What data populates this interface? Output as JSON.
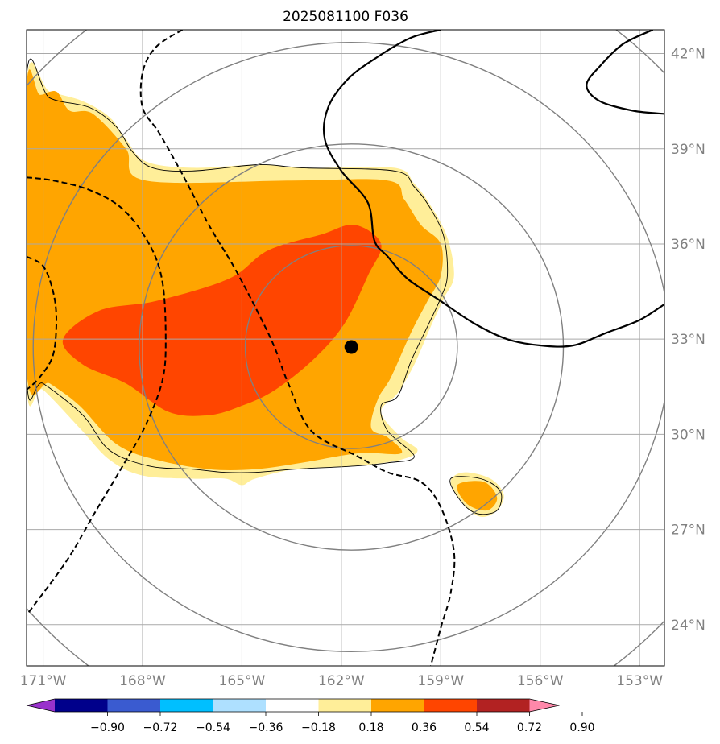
{
  "chart_data": {
    "type": "heatmap",
    "title": "2025081100 F036",
    "xlim": [
      -171.5,
      -152.25
    ],
    "ylim": [
      22.7,
      42.75
    ],
    "grid": true,
    "x_ticks": [
      -171,
      -168,
      -165,
      -162,
      -159,
      -156,
      -153
    ],
    "x_tick_labels": [
      "171°W",
      "168°W",
      "165°W",
      "162°W",
      "159°W",
      "156°W",
      "153°W"
    ],
    "y_ticks": [
      24,
      27,
      30,
      33,
      36,
      39,
      42
    ],
    "y_tick_labels": [
      "24°N",
      "27°N",
      "30°N",
      "33°N",
      "36°N",
      "39°N",
      "42°N"
    ],
    "center_point": {
      "lon": -161.7,
      "lat": 32.75
    },
    "range_rings_radius_deg": [
      3.2,
      6.4,
      9.6,
      12.8
    ],
    "fill_levels": [
      {
        "range": [
          0.18,
          0.36
        ],
        "color": "#FFEE99"
      },
      {
        "range": [
          0.36,
          0.54
        ],
        "color": "#FFA500"
      },
      {
        "range": [
          0.54,
          0.72
        ],
        "color": "#FF4500"
      }
    ],
    "regions": [
      {
        "level": 0.18,
        "color": "#FFEE99",
        "points": [
          [
            -171.5,
            41.1
          ],
          [
            -170.8,
            40.8
          ],
          [
            -169.8,
            40.5
          ],
          [
            -169.0,
            40.0
          ],
          [
            -168.5,
            39.3
          ],
          [
            -167.9,
            38.6
          ],
          [
            -166.5,
            38.4
          ],
          [
            -164.5,
            38.5
          ],
          [
            -163.0,
            38.4
          ],
          [
            -160.4,
            38.4
          ],
          [
            -159.8,
            37.9
          ],
          [
            -159.3,
            37.2
          ],
          [
            -158.8,
            36.2
          ],
          [
            -158.6,
            35.0
          ],
          [
            -158.9,
            34.3
          ],
          [
            -159.3,
            33.4
          ],
          [
            -159.8,
            32.2
          ],
          [
            -160.3,
            31.3
          ],
          [
            -160.8,
            30.7
          ],
          [
            -160.2,
            29.9
          ],
          [
            -159.7,
            29.5
          ],
          [
            -160.2,
            29.2
          ],
          [
            -161.6,
            29.0
          ],
          [
            -163.4,
            28.9
          ],
          [
            -164.6,
            28.6
          ],
          [
            -165.0,
            28.4
          ],
          [
            -165.5,
            28.6
          ],
          [
            -166.5,
            28.6
          ],
          [
            -168.0,
            28.7
          ],
          [
            -169.0,
            29.2
          ],
          [
            -169.9,
            30.2
          ],
          [
            -171.0,
            31.4
          ],
          [
            -171.5,
            31.6
          ]
        ]
      },
      {
        "level": 0.36,
        "color": "#FFA500",
        "points": [
          [
            -171.5,
            40.9
          ],
          [
            -171.1,
            40.7
          ],
          [
            -170.6,
            40.8
          ],
          [
            -170.2,
            40.2
          ],
          [
            -169.5,
            40.1
          ],
          [
            -168.5,
            39.0
          ],
          [
            -167.9,
            38.0
          ],
          [
            -163.5,
            38.0
          ],
          [
            -160.6,
            38.0
          ],
          [
            -160.1,
            37.4
          ],
          [
            -159.6,
            36.6
          ],
          [
            -159.0,
            36.0
          ],
          [
            -159.0,
            35.0
          ],
          [
            -159.4,
            34.2
          ],
          [
            -159.9,
            33.2
          ],
          [
            -160.5,
            31.8
          ],
          [
            -160.9,
            31.1
          ],
          [
            -161.1,
            30.2
          ],
          [
            -160.6,
            29.9
          ],
          [
            -160.2,
            29.4
          ],
          [
            -161.5,
            29.4
          ],
          [
            -163.2,
            29.1
          ],
          [
            -164.6,
            28.9
          ],
          [
            -166.0,
            28.9
          ],
          [
            -167.6,
            29.2
          ],
          [
            -168.8,
            29.7
          ],
          [
            -169.9,
            30.9
          ],
          [
            -170.8,
            31.6
          ],
          [
            -171.5,
            32.0
          ]
        ]
      },
      {
        "level": 0.54,
        "color": "#FF4500",
        "points": [
          [
            -170.4,
            33.0
          ],
          [
            -169.3,
            33.9
          ],
          [
            -167.6,
            34.2
          ],
          [
            -165.4,
            34.9
          ],
          [
            -164.2,
            35.8
          ],
          [
            -162.6,
            36.3
          ],
          [
            -161.6,
            36.6
          ],
          [
            -160.8,
            36.0
          ],
          [
            -161.2,
            35.0
          ],
          [
            -161.9,
            33.5
          ],
          [
            -162.8,
            32.4
          ],
          [
            -164.0,
            31.4
          ],
          [
            -165.0,
            30.9
          ],
          [
            -166.0,
            30.6
          ],
          [
            -167.2,
            30.7
          ],
          [
            -168.5,
            31.6
          ],
          [
            -169.8,
            32.2
          ]
        ]
      },
      {
        "level": 0.18,
        "color": "#FFEE99",
        "points": [
          [
            -158.7,
            28.5
          ],
          [
            -158.3,
            28.8
          ],
          [
            -157.5,
            28.6
          ],
          [
            -157.1,
            28.1
          ],
          [
            -157.3,
            27.6
          ],
          [
            -157.8,
            27.4
          ],
          [
            -158.3,
            27.8
          ]
        ]
      },
      {
        "level": 0.36,
        "color": "#FFA500",
        "points": [
          [
            -158.5,
            28.4
          ],
          [
            -157.7,
            28.5
          ],
          [
            -157.3,
            28.0
          ],
          [
            -157.6,
            27.6
          ],
          [
            -158.2,
            27.8
          ]
        ]
      }
    ],
    "thin_contours": [
      {
        "closed": true,
        "points": [
          [
            -171.5,
            41.3
          ],
          [
            -170.8,
            40.6
          ],
          [
            -169.6,
            40.3
          ],
          [
            -168.8,
            39.7
          ],
          [
            -168.3,
            38.9
          ],
          [
            -167.7,
            38.4
          ],
          [
            -166.5,
            38.3
          ],
          [
            -164.5,
            38.5
          ],
          [
            -163.2,
            38.4
          ],
          [
            -160.4,
            38.3
          ],
          [
            -159.8,
            37.8
          ],
          [
            -159.3,
            37.1
          ],
          [
            -158.9,
            36.2
          ],
          [
            -158.8,
            35.0
          ],
          [
            -159.0,
            34.3
          ],
          [
            -159.4,
            33.4
          ],
          [
            -159.9,
            32.3
          ],
          [
            -160.3,
            31.2
          ],
          [
            -160.8,
            30.9
          ],
          [
            -160.6,
            30.1
          ],
          [
            -159.8,
            29.3
          ],
          [
            -160.6,
            29.1
          ],
          [
            -161.6,
            29.0
          ],
          [
            -163.4,
            28.9
          ],
          [
            -164.6,
            28.8
          ],
          [
            -165.5,
            28.8
          ],
          [
            -166.5,
            28.9
          ],
          [
            -167.8,
            29.0
          ],
          [
            -169.0,
            29.5
          ],
          [
            -169.8,
            30.6
          ],
          [
            -171.0,
            31.6
          ],
          [
            -171.5,
            31.8
          ]
        ]
      },
      {
        "closed": true,
        "points": [
          [
            -158.7,
            28.6
          ],
          [
            -157.8,
            28.6
          ],
          [
            -157.2,
            28.2
          ],
          [
            -157.3,
            27.6
          ],
          [
            -157.9,
            27.5
          ],
          [
            -158.4,
            27.9
          ]
        ]
      }
    ],
    "solid_contours": [
      {
        "points": [
          [
            -159.0,
            42.75
          ],
          [
            -159.9,
            42.5
          ],
          [
            -160.9,
            41.9
          ],
          [
            -161.8,
            41.2
          ],
          [
            -162.4,
            40.3
          ],
          [
            -162.5,
            39.3
          ],
          [
            -162.0,
            38.3
          ],
          [
            -161.2,
            37.3
          ],
          [
            -161.0,
            36.1
          ],
          [
            -160.6,
            35.6
          ],
          [
            -160.0,
            34.9
          ],
          [
            -159.0,
            34.2
          ],
          [
            -158.0,
            33.5
          ],
          [
            -157.0,
            33.0
          ],
          [
            -156.0,
            32.8
          ],
          [
            -155.0,
            32.8
          ],
          [
            -154.0,
            33.2
          ],
          [
            -153.0,
            33.6
          ],
          [
            -152.25,
            34.1
          ]
        ]
      },
      {
        "points": [
          [
            -152.6,
            42.75
          ],
          [
            -153.5,
            42.3
          ],
          [
            -154.2,
            41.6
          ],
          [
            -154.6,
            41.0
          ],
          [
            -154.2,
            40.5
          ],
          [
            -153.2,
            40.2
          ],
          [
            -152.25,
            40.1
          ]
        ]
      }
    ],
    "dashed_contours": [
      {
        "points": [
          [
            -166.8,
            42.75
          ],
          [
            -167.6,
            42.2
          ],
          [
            -168.0,
            41.4
          ],
          [
            -168.0,
            40.3
          ],
          [
            -167.5,
            39.5
          ],
          [
            -166.8,
            38.2
          ],
          [
            -166.0,
            36.6
          ],
          [
            -165.2,
            35.2
          ],
          [
            -164.4,
            33.6
          ],
          [
            -164.0,
            32.7
          ],
          [
            -163.6,
            31.6
          ],
          [
            -162.9,
            30.1
          ],
          [
            -161.5,
            29.3
          ],
          [
            -160.6,
            28.8
          ],
          [
            -159.6,
            28.5
          ],
          [
            -159.0,
            27.7
          ],
          [
            -158.6,
            26.3
          ],
          [
            -158.7,
            25.0
          ],
          [
            -159.0,
            23.9
          ],
          [
            -159.3,
            22.7
          ]
        ]
      },
      {
        "points": [
          [
            -171.5,
            38.1
          ],
          [
            -170.7,
            38.0
          ],
          [
            -169.6,
            37.7
          ],
          [
            -168.6,
            37.1
          ],
          [
            -167.8,
            36.0
          ],
          [
            -167.4,
            34.8
          ],
          [
            -167.3,
            33.0
          ],
          [
            -167.4,
            31.7
          ],
          [
            -167.9,
            30.3
          ],
          [
            -168.6,
            29.0
          ],
          [
            -169.4,
            27.6
          ],
          [
            -170.3,
            26.0
          ],
          [
            -171.5,
            24.3
          ]
        ]
      },
      {
        "points": [
          [
            -171.5,
            35.6
          ],
          [
            -171.0,
            35.3
          ],
          [
            -170.7,
            34.5
          ],
          [
            -170.6,
            33.6
          ],
          [
            -170.7,
            32.5
          ],
          [
            -171.1,
            31.8
          ],
          [
            -171.5,
            31.4
          ]
        ]
      }
    ],
    "colorbar": {
      "boundaries": [
        -0.9,
        -0.72,
        -0.54,
        -0.36,
        -0.18,
        0.18,
        0.36,
        0.54,
        0.72,
        0.9
      ],
      "tick_labels": [
        "−0.90",
        "−0.72",
        "−0.54",
        "−0.36",
        "−0.18",
        "0.18",
        "0.36",
        "0.54",
        "0.72",
        "0.90"
      ],
      "under_color": "#9932CC",
      "over_color": "#FF88AA",
      "colors": [
        "#00008B",
        "#3A5BD0",
        "#00BFFF",
        "#AEE0FF",
        "#FFFFFF",
        "#FFEE99",
        "#FFA500",
        "#FF4500",
        "#B22222"
      ]
    }
  }
}
